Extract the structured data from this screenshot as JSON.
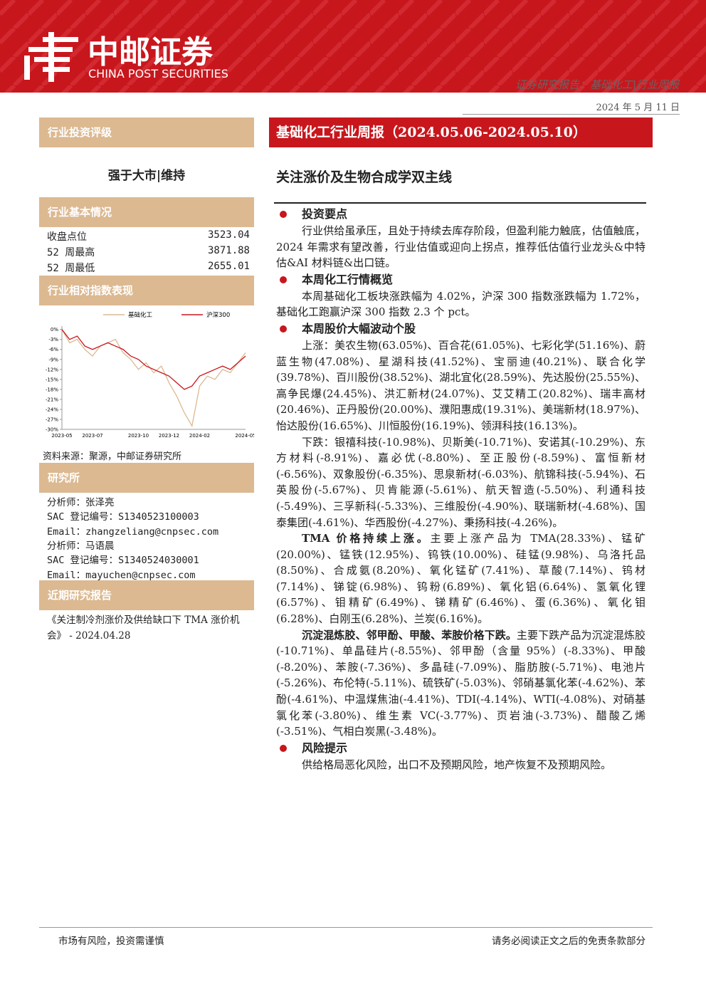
{
  "header": {
    "logo_cn": "中邮证券",
    "logo_en": "CHINA POST SECURITIES",
    "report_type": "证券研究报告：基础化工|行业周报",
    "date": "2024 年 5 月 11 日"
  },
  "sidebar": {
    "rating_title": "行业投资评级",
    "rating": "强于大市|维持",
    "basics_title": "行业基本情况",
    "basics": [
      [
        "收盘点位",
        "3523.04"
      ],
      [
        "52 周最高",
        "3871.88"
      ],
      [
        "52 周最低",
        "2655.01"
      ]
    ],
    "perf_title": "行业相对指数表现",
    "source": "资料来源：聚源，中邮证券研究所",
    "research_title": "研究所",
    "analysts": [
      "分析师：张泽亮",
      "SAC 登记编号：S1340523100003",
      "Email：zhangzeliang@cnpsec.com",
      "分析师：马语晨",
      "SAC 登记编号：S1340524030001",
      "Email：mayuchen@cnpsec.com"
    ],
    "recent_title": "近期研究报告",
    "recent": "《关注制冷剂涨价及供给缺口下 TMA 涨价机会》 - 2024.04.28"
  },
  "chart_data": {
    "type": "line",
    "categories": [
      "2023-05",
      null,
      null,
      null,
      "2023-07",
      null,
      null,
      null,
      null,
      null,
      "2023-10",
      null,
      null,
      null,
      "2023-12",
      null,
      null,
      null,
      "2024-02",
      null,
      null,
      null,
      null,
      null,
      "2024-05"
    ],
    "series": [
      {
        "name": "基础化工",
        "color": "#dcb991",
        "values": [
          0,
          -4,
          -3,
          -6,
          -8,
          -5,
          -4,
          -3,
          -7,
          -9,
          -12,
          -10,
          -13,
          -11,
          -16,
          -20,
          -25,
          -29,
          -17,
          -14,
          -15,
          -12,
          -13,
          -10,
          -7
        ]
      },
      {
        "name": "沪深300",
        "color": "#c8161d",
        "values": [
          0,
          -3,
          -2,
          -5,
          -6,
          -5,
          -4,
          -5,
          -6,
          -8,
          -9,
          -11,
          -12,
          -13,
          -14,
          -16,
          -18,
          -17,
          -14,
          -13,
          -12,
          -11,
          -12,
          -10,
          -8
        ]
      }
    ],
    "ylim": [
      -30,
      1
    ],
    "yticks": [
      {
        "value": 0,
        "label": "0%"
      },
      {
        "value": -3,
        "label": "-3%"
      },
      {
        "value": -6,
        "label": "-6%"
      },
      {
        "value": -9,
        "label": "-9%"
      },
      {
        "value": -12,
        "label": "-12%"
      },
      {
        "value": -15,
        "label": "-15%"
      },
      {
        "value": -18,
        "label": "-18%"
      },
      {
        "value": -21,
        "label": "-21%"
      },
      {
        "value": -24,
        "label": "-24%"
      },
      {
        "value": -27,
        "label": "-27%"
      },
      {
        "value": -30,
        "label": "-30%"
      }
    ]
  },
  "main": {
    "title": "基础化工行业周报（2024.05.06-2024.05.10）",
    "subtitle": "关注涨价及生物合成学双主线",
    "sections": [
      {
        "heading": "投资要点",
        "paragraphs": [
          {
            "text": "行业供给虽承压，且处于持续去库存阶段，但盈利能力触底，估值触底，2024 年需求有望改善，行业估值或迎向上拐点，推荐低估值行业龙头&中特估&AI 材料链&出口链。"
          }
        ]
      },
      {
        "heading": "本周化工行情概览",
        "paragraphs": [
          {
            "text": "本周基础化工板块涨跌幅为 4.02%，沪深 300 指数涨跌幅为 1.72%，基础化工跑赢沪深 300 指数 2.3 个 pct。"
          }
        ]
      },
      {
        "heading": "本周股价大幅波动个股",
        "paragraphs": [
          {
            "text": "上涨：美农生物(63.05%)、百合花(61.05%)、七彩化学(51.16%)、蔚蓝生物(47.08%)、星湖科技(41.52%)、宝丽迪(40.21%)、联合化学(39.78%)、百川股份(38.52%)、湖北宜化(28.59%)、先达股份(25.55%)、高争民爆(24.45%)、洪汇新材(24.07%)、艾艾精工(20.82%)、瑞丰高材(20.46%)、正丹股份(20.00%)、濮阳惠成(19.31%)、美瑞新材(18.97%)、怡达股份(16.65%)、川恒股份(16.19%)、领湃科技(16.13%)。"
          },
          {
            "text": "下跌：银禧科技(-10.98%)、贝斯美(-10.71%)、安诺其(-10.29%)、东方材料(-8.91%)、嘉必优(-8.80%)、至正股份(-8.59%)、富恒新材(-6.56%)、双象股份(-6.35%)、思泉新材(-6.03%)、航锦科技(-5.94%)、石英股份(-5.67%)、贝肯能源(-5.61%)、航天智造(-5.50%)、利通科技(-5.49%)、三孚新科(-5.33%)、三维股份(-4.90%)、联瑞新材(-4.68%)、国泰集团(-4.61%)、华西股份(-4.27%)、秉扬科技(-4.26%)。"
          },
          {
            "bold": "TMA 价格持续上涨。",
            "text": "主要上涨产品为 TMA(28.33%)、锰矿(20.00%)、锰铁(12.95%)、钨铁(10.00%)、硅锰(9.98%)、乌洛托品(8.50%)、合成氨(8.20%)、氧化锰矿(7.41%)、草酸(7.14%)、钨材(7.14%)、锑锭(6.98%)、钨粉(6.89%)、氧化铝(6.64%)、氢氧化锂(6.57%)、钼精矿(6.49%)、锑精矿(6.46%)、蛋(6.36%)、氧化钼(6.28%)、白刚玉(6.28%)、兰炭(6.16%)。"
          },
          {
            "bold": "沉淀混炼胶、邻甲酚、甲酸、苯胺价格下跌。",
            "text": "主要下跌产品为沉淀混炼胶(-10.71%)、单晶硅片(-8.55%)、邻甲酚（含量 95%）(-8.33%)、甲酸(-8.20%)、苯胺(-7.36%)、多晶硅(-7.09%)、脂肪胺(-5.71%)、电池片(-5.26%)、布伦特(-5.11%)、硫铁矿(-5.03%)、邻硝基氯化苯(-4.62%)、苯酚(-4.61%)、中温煤焦油(-4.41%)、TDI(-4.14%)、WTI(-4.08%)、对硝基氯化苯(-3.80%)、维生素 VC(-3.77%)、页岩油(-3.73%)、醋酸乙烯(-3.51%)、气相白炭黑(-3.48%)。"
          }
        ]
      },
      {
        "heading": "风险提示",
        "paragraphs": [
          {
            "text": "供给格局恶化风险，出口不及预期风险，地产恢复不及预期风险。"
          }
        ]
      }
    ]
  },
  "footer": {
    "left": "市场有风险，投资需谨慎",
    "right": "请务必阅读正文之后的免责条款部分"
  }
}
